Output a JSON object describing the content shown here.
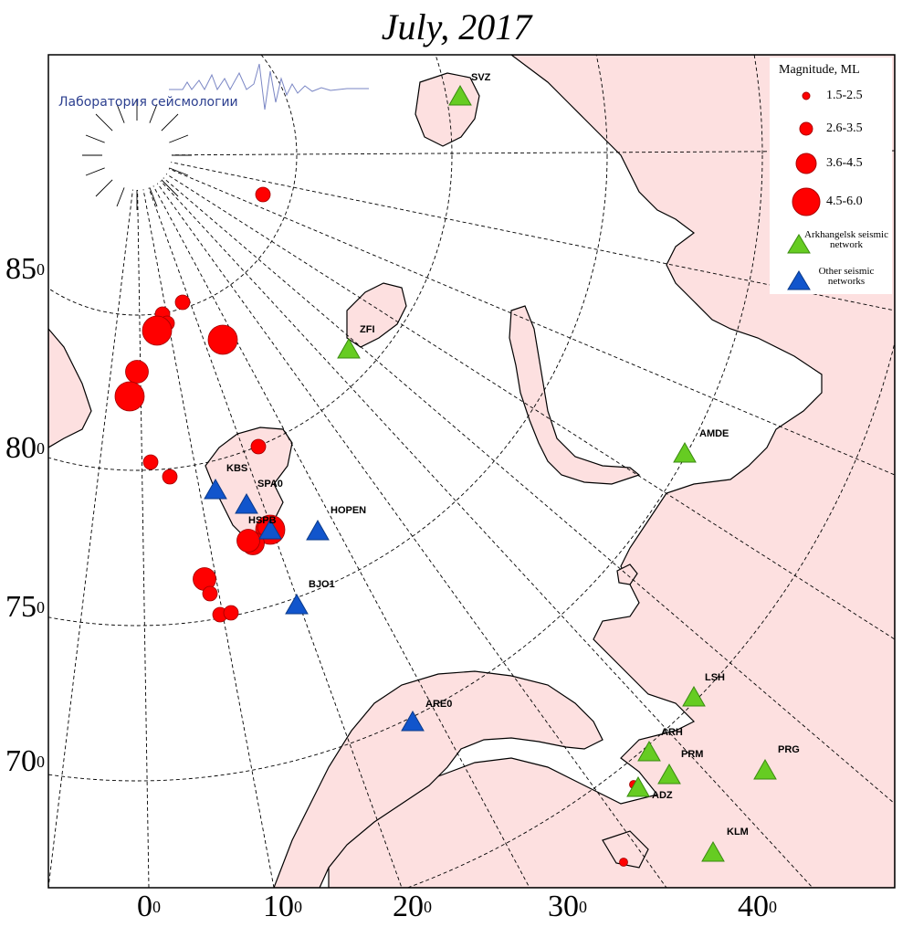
{
  "title": "July, 2017",
  "logo": {
    "text": "Лаборатория сейсмологии"
  },
  "axes": {
    "lat_labels": [
      "85",
      "80",
      "75",
      "70"
    ],
    "lon_labels": [
      "0",
      "10",
      "20",
      "30",
      "40"
    ],
    "degree_symbol": "0"
  },
  "legend": {
    "title": "Magnitude, ML",
    "magnitude_classes": [
      "1.5-2.5",
      "2.6-3.5",
      "3.6-4.5",
      "4.5-6.0"
    ],
    "arkhangelsk": "Arkhangelsk seismic network",
    "other": "Other seismic networks"
  },
  "colors": {
    "sea": "#ffffff",
    "land": "#fde0e0",
    "event": "#ff0000",
    "arkhangelsk_station": "#66cc22",
    "other_station": "#1155cc"
  },
  "stations": [
    {
      "code": "SVZ",
      "network": "arkhangelsk"
    },
    {
      "code": "ZFI",
      "network": "arkhangelsk"
    },
    {
      "code": "AMDE",
      "network": "arkhangelsk"
    },
    {
      "code": "KBS",
      "network": "other"
    },
    {
      "code": "SPA0",
      "network": "other"
    },
    {
      "code": "HSPB",
      "network": "other"
    },
    {
      "code": "HOPEN",
      "network": "other"
    },
    {
      "code": "BJO1",
      "network": "other"
    },
    {
      "code": "ARE0",
      "network": "other"
    },
    {
      "code": "LSH",
      "network": "arkhangelsk"
    },
    {
      "code": "ARH",
      "network": "arkhangelsk"
    },
    {
      "code": "PRM",
      "network": "arkhangelsk"
    },
    {
      "code": "PRG",
      "network": "arkhangelsk"
    },
    {
      "code": "ADZ",
      "network": "arkhangelsk"
    },
    {
      "code": "KLM",
      "network": "arkhangelsk"
    }
  ],
  "events": [
    {
      "magnitude_class": "2.6-3.5"
    },
    {
      "magnitude_class": "2.6-3.5"
    },
    {
      "magnitude_class": "2.6-3.5"
    },
    {
      "magnitude_class": "2.6-3.5"
    },
    {
      "magnitude_class": "4.5-6.0"
    },
    {
      "magnitude_class": "4.5-6.0"
    },
    {
      "magnitude_class": "3.6-4.5"
    },
    {
      "magnitude_class": "4.5-6.0"
    },
    {
      "magnitude_class": "2.6-3.5"
    },
    {
      "magnitude_class": "2.6-3.5"
    },
    {
      "magnitude_class": "2.6-3.5"
    },
    {
      "magnitude_class": "4.5-6.0"
    },
    {
      "magnitude_class": "3.6-4.5"
    },
    {
      "magnitude_class": "3.6-4.5"
    },
    {
      "magnitude_class": "3.6-4.5"
    },
    {
      "magnitude_class": "2.6-3.5"
    },
    {
      "magnitude_class": "2.6-3.5"
    },
    {
      "magnitude_class": "2.6-3.5"
    },
    {
      "magnitude_class": "1.5-2.5"
    },
    {
      "magnitude_class": "1.5-2.5"
    },
    {
      "magnitude_class": "2.6-3.5"
    }
  ]
}
